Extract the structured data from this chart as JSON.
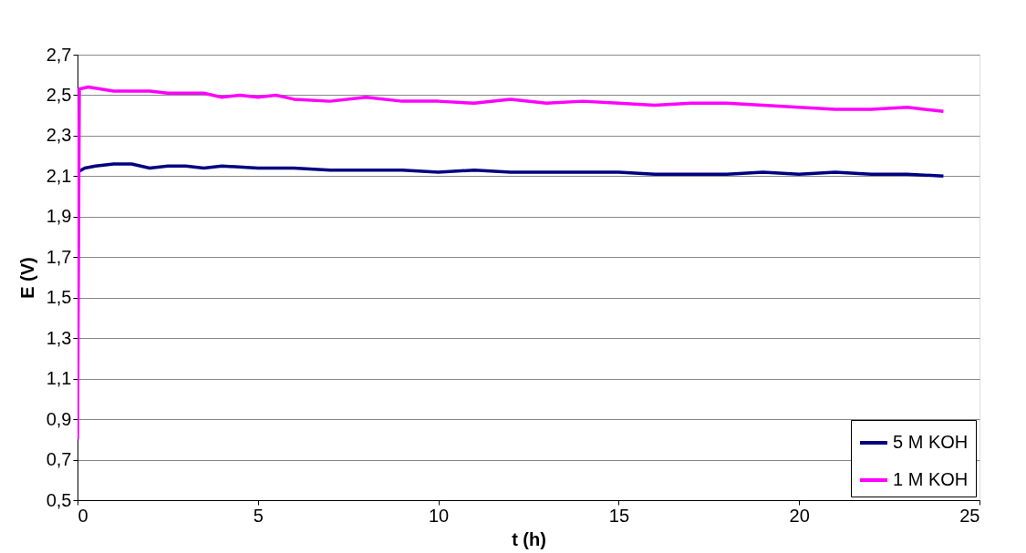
{
  "chart_data": {
    "type": "line",
    "xlabel": "t (h)",
    "ylabel": "E (V)",
    "xlim": [
      0,
      25
    ],
    "xticks": [
      0,
      5,
      10,
      15,
      20,
      25
    ],
    "ylim": [
      0.5,
      2.7
    ],
    "yticks": [
      {
        "value": 0.5,
        "label": "0,5"
      },
      {
        "value": 0.7,
        "label": "0,7"
      },
      {
        "value": 0.9,
        "label": "0,9"
      },
      {
        "value": 1.1,
        "label": "1,1"
      },
      {
        "value": 1.3,
        "label": "1,3"
      },
      {
        "value": 1.5,
        "label": "1,5"
      },
      {
        "value": 1.7,
        "label": "1,7"
      },
      {
        "value": 1.9,
        "label": "1,9"
      },
      {
        "value": 2.1,
        "label": "2,1"
      },
      {
        "value": 2.3,
        "label": "2,3"
      },
      {
        "value": 2.5,
        "label": "2,5"
      },
      {
        "value": 2.7,
        "label": "2,7"
      }
    ],
    "grid": "y",
    "legend": "bottom right",
    "marker": "none",
    "line_style": "solid",
    "series": [
      {
        "name": "5 M KOH",
        "color": "#000080",
        "x": [
          0,
          0.2,
          0.5,
          1,
          1.5,
          2,
          2.5,
          3,
          3.5,
          4,
          5,
          6,
          7,
          8,
          9,
          10,
          11,
          12,
          13,
          14,
          15,
          16,
          18,
          19,
          20,
          21,
          22,
          23,
          24
        ],
        "values": [
          2.12,
          2.14,
          2.15,
          2.16,
          2.16,
          2.14,
          2.15,
          2.15,
          2.14,
          2.15,
          2.14,
          2.14,
          2.13,
          2.13,
          2.13,
          2.12,
          2.13,
          2.12,
          2.12,
          2.12,
          2.12,
          2.11,
          2.11,
          2.12,
          2.11,
          2.12,
          2.11,
          2.11,
          2.1
        ]
      },
      {
        "name": "1 M KOH",
        "color": "#ff00ff",
        "x": [
          0,
          0.05,
          0.3,
          1,
          2,
          2.5,
          3.5,
          4,
          4.5,
          5,
          5.5,
          6,
          7,
          8,
          9,
          10,
          11,
          12,
          13,
          14,
          15,
          16,
          17,
          18,
          19,
          20,
          21,
          22,
          23,
          24
        ],
        "values": [
          0.8,
          2.53,
          2.54,
          2.52,
          2.52,
          2.51,
          2.51,
          2.49,
          2.5,
          2.49,
          2.5,
          2.48,
          2.47,
          2.49,
          2.47,
          2.47,
          2.46,
          2.48,
          2.46,
          2.47,
          2.46,
          2.45,
          2.46,
          2.46,
          2.45,
          2.44,
          2.43,
          2.43,
          2.44,
          2.42
        ]
      }
    ]
  }
}
